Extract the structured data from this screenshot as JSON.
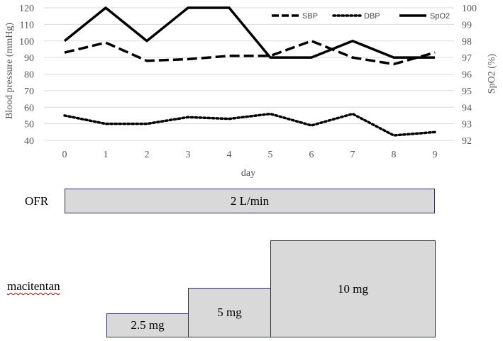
{
  "chart_data": {
    "type": "line",
    "x": [
      0,
      1,
      2,
      3,
      4,
      5,
      6,
      7,
      8,
      9
    ],
    "xlabel": "day",
    "ylabel_left": "Blood pressure (mmHg)",
    "ylabel_right": "SpO2 (%)",
    "ylim_left": [
      40,
      120
    ],
    "ylim_right": [
      92,
      100
    ],
    "yticks_left": [
      40,
      50,
      60,
      70,
      80,
      90,
      100,
      110,
      120
    ],
    "yticks_right": [
      92,
      93,
      94,
      95,
      96,
      97,
      98,
      99,
      100
    ],
    "grid": true,
    "legend_position": "top-right",
    "series": [
      {
        "name": "SBP",
        "axis": "left",
        "style": "dashed",
        "color": "#000000",
        "values": [
          93,
          99,
          88,
          89,
          91,
          91,
          100,
          90,
          86,
          93
        ]
      },
      {
        "name": "DBP",
        "axis": "left",
        "style": "dotted",
        "color": "#000000",
        "values": [
          55,
          50,
          50,
          54,
          53,
          56,
          49,
          56,
          43,
          45
        ]
      },
      {
        "name": "SpO2",
        "axis": "right",
        "style": "solid",
        "color": "#000000",
        "values": [
          98,
          100,
          98,
          100,
          100,
          97,
          97,
          98,
          97,
          97
        ]
      }
    ]
  },
  "ofr": {
    "label": "OFR",
    "bars": [
      {
        "text": "2 L/min",
        "start_day": 0,
        "end_day": 9
      }
    ]
  },
  "macitentan": {
    "label": "macitentan",
    "steps": [
      {
        "text": "2.5 mg",
        "start_day": 1,
        "end_day": 3,
        "level": 1
      },
      {
        "text": "5 mg",
        "start_day": 3,
        "end_day": 5,
        "level": 2
      },
      {
        "text": "10 mg",
        "start_day": 5,
        "end_day": 9,
        "level": 3
      }
    ]
  },
  "colors": {
    "box_fill": "#d9d9d9",
    "box_border": "#2f2f5f",
    "grid": "#d9d9d9"
  }
}
